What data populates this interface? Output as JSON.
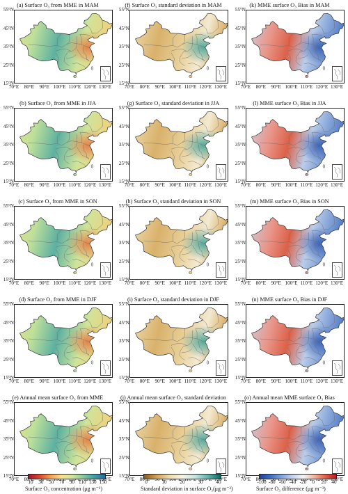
{
  "lat_labels": [
    "55°N",
    "45°N",
    "35°N",
    "25°N",
    "15°N"
  ],
  "lon_labels": [
    "70°E",
    "80°E",
    "90°E",
    "100°E",
    "110°E",
    "120°E",
    "130°E"
  ],
  "panels": [
    {
      "title": "(a) Surface O₃ from MME in MAM"
    },
    {
      "title": "(f) Surface O₃ standard deviation in MAM"
    },
    {
      "title": "(k) MME surface O₃ Bias in MAM"
    },
    {
      "title": "(b) Surface O₃ from MME in JJA"
    },
    {
      "title": "(g) Surface O₃ standard deviation in JJA"
    },
    {
      "title": "(l) MME surface O₃ Bias in JJA"
    },
    {
      "title": "(c) Surface O₃ from MME in SON"
    },
    {
      "title": "(h) Surface O₃ standard deviation in SON"
    },
    {
      "title": "(m) MME surface O₃ Bias in SON"
    },
    {
      "title": "(d) Surface O₃ from MME in DJF"
    },
    {
      "title": "(i) Surface O₃ standard deviation in DJF"
    },
    {
      "title": "(n) MME surface O₃ Bias in DJF"
    },
    {
      "title": "(e) Annual mean surface O₃ from MME"
    },
    {
      "title": "(j) Annual mean surface O₃ standard deviation"
    },
    {
      "title": "(o) Annual mean MME surface O₃ Bias"
    }
  ],
  "colorbars": [
    {
      "label": "Surface O₃ concentration (μg m⁻³)",
      "ticks": [
        "10",
        "30",
        "50",
        "70",
        "90",
        "110",
        "130",
        "150"
      ],
      "colors": [
        "#a0142c",
        "#d8452e",
        "#f2a04f",
        "#f8e08a",
        "#cfe69b",
        "#86c89a",
        "#3f9fa4",
        "#2b6a9e"
      ]
    },
    {
      "label": "Standard deviation in surface O₃(μg m⁻³)",
      "ticks": [
        "0",
        "10",
        "20",
        "30",
        "40"
      ],
      "colors": [
        "#8c5a1c",
        "#cfa258",
        "#efdcab",
        "#f7f3e6",
        "#c2e6df",
        "#5fb3aa",
        "#0c6a62"
      ]
    },
    {
      "label": "Surface O₃ difference (μg m⁻³)",
      "ticks": [
        "-100",
        "-80",
        "-60",
        "-40",
        "-20",
        "0",
        "20",
        "40"
      ],
      "colors": [
        "#233f98",
        "#3f6ec0",
        "#7fa2d9",
        "#c3d3ee",
        "#f4f4f4",
        "#f2b49c",
        "#e0604a",
        "#b71d25"
      ]
    }
  ]
}
